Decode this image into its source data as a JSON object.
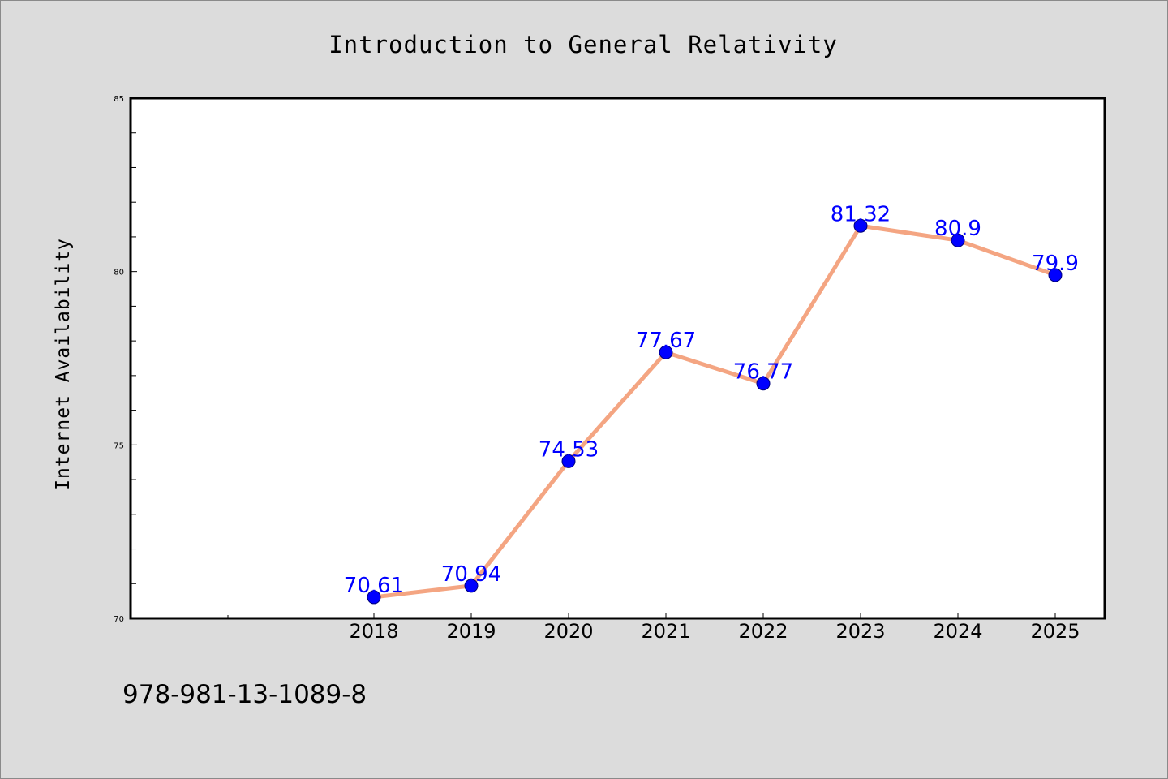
{
  "chart_data": {
    "type": "line",
    "title": "Introduction to General Relativity",
    "xlabel": "",
    "ylabel": "Internet Availability",
    "categories": [
      "2018",
      "2019",
      "2020",
      "2021",
      "2022",
      "2023",
      "2024",
      "2025"
    ],
    "series": [
      {
        "values": [
          70.61,
          70.94,
          74.53,
          77.67,
          76.77,
          81.32,
          80.9,
          79.9
        ],
        "labels": [
          "70.61",
          "70.94",
          "74.53",
          "77.67",
          "76.77",
          "81.32",
          "80.9",
          "79.9"
        ]
      }
    ],
    "ylim": [
      70,
      85
    ],
    "yticks": [
      "70",
      "75",
      "80",
      "85"
    ],
    "grid": false,
    "legend": "none",
    "line_color": "#f4a582",
    "marker_color": "#0000ff",
    "label_color": "#0000ff"
  },
  "footer": {
    "isbn": "978-981-13-1089-8"
  }
}
